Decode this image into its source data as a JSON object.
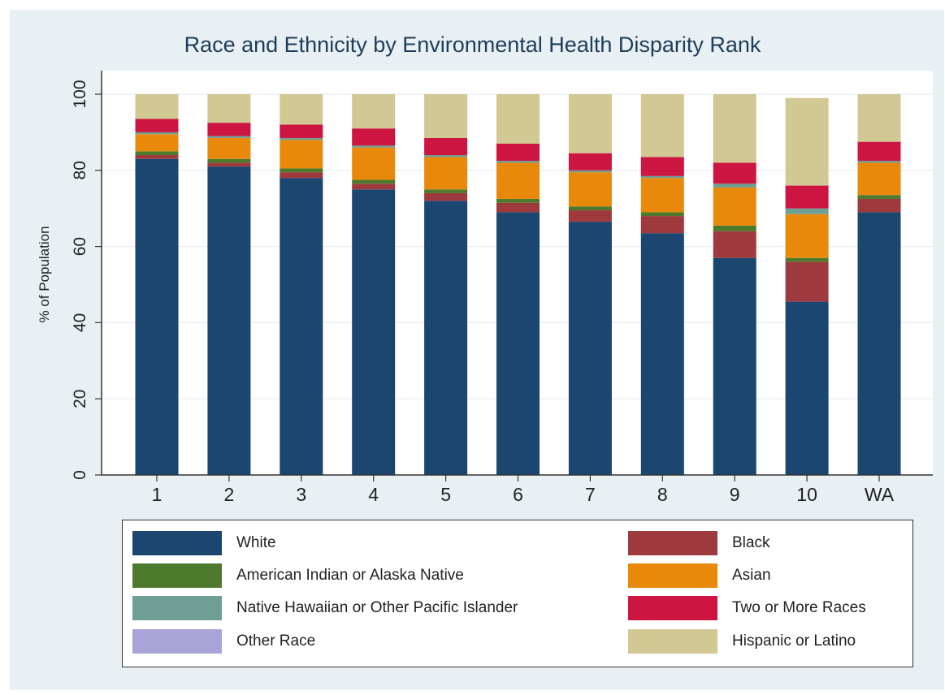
{
  "chart_data": {
    "type": "bar",
    "stacked": true,
    "title": "Race and Ethnicity by Environmental Health Disparity Rank",
    "xlabel": "",
    "ylabel": "% of Population",
    "ylim": [
      0,
      100
    ],
    "yticks": [
      "0",
      "20",
      "40",
      "60",
      "80",
      "100"
    ],
    "grid": true,
    "legend_position": "bottom",
    "categories": [
      "1",
      "2",
      "3",
      "4",
      "5",
      "6",
      "7",
      "8",
      "9",
      "10",
      "WA"
    ],
    "series": [
      {
        "name": "White",
        "color": "#1a4670",
        "values": [
          83.0,
          81.0,
          78.0,
          75.0,
          72.0,
          69.0,
          66.5,
          63.5,
          57.0,
          45.5,
          69.0
        ]
      },
      {
        "name": "Black",
        "color": "#9e3a3e",
        "values": [
          1.0,
          1.0,
          1.5,
          1.5,
          2.0,
          2.5,
          3.0,
          4.5,
          7.0,
          10.5,
          3.5
        ]
      },
      {
        "name": "American Indian or Alaska Native",
        "color": "#4d7a2c",
        "values": [
          1.0,
          1.0,
          1.0,
          1.0,
          1.0,
          1.0,
          1.0,
          1.0,
          1.5,
          1.0,
          1.0
        ]
      },
      {
        "name": "Asian",
        "color": "#e8890c",
        "values": [
          4.5,
          5.5,
          7.5,
          8.5,
          8.5,
          9.5,
          9.0,
          9.0,
          10.0,
          11.5,
          8.5
        ]
      },
      {
        "name": "Native Hawaiian or Other Pacific Islander",
        "color": "#6e9e94",
        "values": [
          0.5,
          0.5,
          0.5,
          0.5,
          0.5,
          0.5,
          0.5,
          0.5,
          1.0,
          1.5,
          0.5
        ]
      },
      {
        "name": "Other Race",
        "color": "#a9a4d8",
        "values": [
          0.0,
          0.0,
          0.0,
          0.0,
          0.0,
          0.0,
          0.0,
          0.0,
          0.0,
          0.0,
          0.0
        ]
      },
      {
        "name": "Two or More Races",
        "color": "#cc1540",
        "values": [
          3.5,
          3.5,
          3.5,
          4.5,
          4.5,
          4.5,
          4.5,
          5.0,
          5.5,
          6.0,
          5.0
        ]
      },
      {
        "name": "Hispanic or Latino",
        "color": "#d2c894",
        "values": [
          6.5,
          7.5,
          8.0,
          9.0,
          11.5,
          13.0,
          15.5,
          16.5,
          18.0,
          23.0,
          12.5
        ]
      }
    ]
  },
  "legend": {
    "items": [
      {
        "label": "White",
        "color": "#1a4670"
      },
      {
        "label": "American Indian or Alaska Native",
        "color": "#4d7a2c"
      },
      {
        "label": "Native Hawaiian or Other Pacific Islander",
        "color": "#6e9e94"
      },
      {
        "label": "Other Race",
        "color": "#a9a4d8"
      },
      {
        "label": "Black",
        "color": "#9e3a3e"
      },
      {
        "label": "Asian",
        "color": "#e8890c"
      },
      {
        "label": "Two or More Races",
        "color": "#cc1540"
      },
      {
        "label": "Hispanic or Latino",
        "color": "#d2c894"
      }
    ]
  }
}
